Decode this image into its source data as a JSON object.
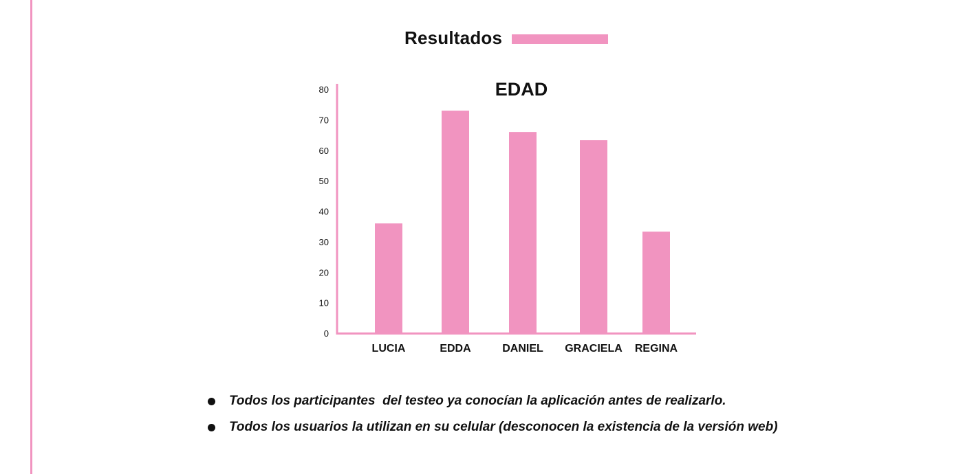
{
  "colors": {
    "accent": "#f194c0",
    "text": "#111111"
  },
  "header": {
    "title": "Resultados"
  },
  "chart_data": {
    "type": "bar",
    "title": "EDAD",
    "categories": [
      "LUCIA",
      "EDDA",
      "DANIEL",
      "GRACIELA",
      "REGINA"
    ],
    "values": [
      36,
      73,
      66,
      63.3,
      33.3
    ],
    "ylim": [
      0,
      80
    ],
    "yticks": [
      0,
      10,
      20,
      30,
      40,
      50,
      60,
      70,
      80
    ],
    "xlabel": "",
    "ylabel": "",
    "grid": false,
    "color": "#f194c0"
  },
  "notes": [
    "Todos los participantes  del testeo ya conocían la aplicación antes de realizarlo.",
    "Todos los usuarios la utilizan en su celular (desconocen la existencia de la versión web)"
  ]
}
